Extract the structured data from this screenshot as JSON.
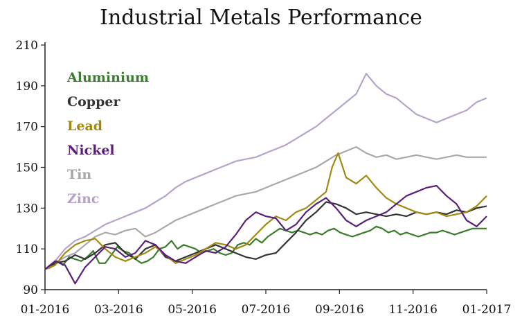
{
  "chart_data": {
    "type": "line",
    "title": "Industrial Metals Performance",
    "xlabel": "",
    "ylabel": "",
    "ylim": [
      90,
      210
    ],
    "yticks": [
      90,
      110,
      130,
      150,
      170,
      190,
      210
    ],
    "x_tick_labels": [
      "01-2016",
      "03-2016",
      "05-2016",
      "07-2016",
      "09-2016",
      "11-2016",
      "01-2017"
    ],
    "x_range_months": [
      0,
      12
    ],
    "legend_position": "top-left",
    "series": [
      {
        "name": "Aluminium",
        "color": "#3a7d2c",
        "points": [
          [
            0,
            100
          ],
          [
            0.3,
            101
          ],
          [
            0.6,
            104
          ],
          [
            0.9,
            102
          ],
          [
            1.2,
            106
          ],
          [
            1.5,
            105
          ],
          [
            1.8,
            104
          ],
          [
            2.1,
            106
          ],
          [
            2.4,
            109
          ],
          [
            2.7,
            103
          ],
          [
            3.0,
            103
          ],
          [
            3.3,
            107
          ],
          [
            3.6,
            111
          ],
          [
            3.9,
            109
          ],
          [
            4.2,
            108
          ],
          [
            4.5,
            105
          ],
          [
            4.8,
            103
          ],
          [
            5.1,
            104
          ],
          [
            5.4,
            106
          ],
          [
            5.7,
            110
          ],
          [
            6.0,
            111
          ],
          [
            6.3,
            114
          ],
          [
            6.6,
            110
          ],
          [
            6.9,
            112
          ],
          [
            7.2,
            111
          ],
          [
            7.5,
            110
          ],
          [
            7.8,
            108
          ],
          [
            8.1,
            109
          ],
          [
            8.4,
            110
          ],
          [
            8.7,
            108
          ],
          [
            9.0,
            107
          ],
          [
            9.3,
            108
          ],
          [
            9.6,
            112
          ],
          [
            9.9,
            113
          ],
          [
            10.2,
            112
          ],
          [
            10.5,
            115
          ],
          [
            10.8,
            113
          ],
          [
            11.1,
            116
          ],
          [
            11.4,
            118
          ],
          [
            11.7,
            120
          ],
          [
            12.0,
            119
          ],
          [
            12.3,
            118
          ],
          [
            12.6,
            119
          ],
          [
            12.9,
            118
          ],
          [
            13.2,
            117
          ],
          [
            13.5,
            118
          ],
          [
            13.8,
            117
          ],
          [
            14.1,
            119
          ],
          [
            14.4,
            120
          ],
          [
            14.7,
            118
          ],
          [
            15.0,
            117
          ],
          [
            15.3,
            116
          ],
          [
            15.6,
            117
          ],
          [
            15.9,
            118
          ],
          [
            16.2,
            119
          ],
          [
            16.5,
            121
          ],
          [
            16.8,
            120
          ],
          [
            17.1,
            118
          ],
          [
            17.4,
            119
          ],
          [
            17.7,
            117
          ],
          [
            18.0,
            118
          ],
          [
            18.3,
            117
          ],
          [
            18.6,
            116
          ],
          [
            18.9,
            117
          ],
          [
            19.2,
            118
          ],
          [
            19.5,
            118
          ],
          [
            19.8,
            119
          ],
          [
            20.1,
            118
          ],
          [
            20.4,
            117
          ],
          [
            20.7,
            118
          ],
          [
            21.0,
            119
          ],
          [
            21.3,
            120
          ],
          [
            21.6,
            120
          ],
          [
            22.0,
            120
          ]
        ]
      },
      {
        "name": "Copper",
        "color": "#333333",
        "points": [
          [
            0,
            100
          ],
          [
            0.5,
            103
          ],
          [
            1.0,
            104
          ],
          [
            1.5,
            107
          ],
          [
            2.0,
            105
          ],
          [
            2.5,
            108
          ],
          [
            3.0,
            112
          ],
          [
            3.5,
            113
          ],
          [
            4.0,
            108
          ],
          [
            4.5,
            105
          ],
          [
            5.0,
            110
          ],
          [
            5.5,
            112
          ],
          [
            6.0,
            106
          ],
          [
            6.5,
            104
          ],
          [
            7.0,
            106
          ],
          [
            7.5,
            108
          ],
          [
            8.0,
            110
          ],
          [
            8.5,
            112
          ],
          [
            9.0,
            110
          ],
          [
            9.5,
            108
          ],
          [
            10.0,
            106
          ],
          [
            10.5,
            105
          ],
          [
            11.0,
            107
          ],
          [
            11.5,
            108
          ],
          [
            12.0,
            113
          ],
          [
            12.5,
            118
          ],
          [
            13.0,
            124
          ],
          [
            13.5,
            128
          ],
          [
            14.0,
            133
          ],
          [
            14.5,
            132
          ],
          [
            15.0,
            130
          ],
          [
            15.5,
            127
          ],
          [
            16.0,
            128
          ],
          [
            16.5,
            127
          ],
          [
            17.0,
            126
          ],
          [
            17.5,
            127
          ],
          [
            18.0,
            126
          ],
          [
            18.5,
            128
          ],
          [
            19.0,
            127
          ],
          [
            19.5,
            128
          ],
          [
            20.0,
            127
          ],
          [
            20.5,
            129
          ],
          [
            21.0,
            128
          ],
          [
            21.5,
            130
          ],
          [
            22.0,
            131
          ]
        ]
      },
      {
        "name": "Lead",
        "color": "#a08a10",
        "points": [
          [
            0,
            100
          ],
          [
            0.5,
            102
          ],
          [
            1.0,
            108
          ],
          [
            1.5,
            112
          ],
          [
            2.0,
            114
          ],
          [
            2.5,
            115
          ],
          [
            3.0,
            110
          ],
          [
            3.5,
            106
          ],
          [
            4.0,
            104
          ],
          [
            4.5,
            106
          ],
          [
            5.0,
            108
          ],
          [
            5.5,
            111
          ],
          [
            6.0,
            107
          ],
          [
            6.5,
            103
          ],
          [
            7.0,
            105
          ],
          [
            7.5,
            107
          ],
          [
            8.0,
            110
          ],
          [
            8.5,
            113
          ],
          [
            9.0,
            112
          ],
          [
            9.5,
            110
          ],
          [
            10.0,
            112
          ],
          [
            10.5,
            117
          ],
          [
            11.0,
            122
          ],
          [
            11.5,
            126
          ],
          [
            12.0,
            124
          ],
          [
            12.5,
            128
          ],
          [
            13.0,
            130
          ],
          [
            13.5,
            134
          ],
          [
            14.0,
            138
          ],
          [
            14.3,
            150
          ],
          [
            14.6,
            157
          ],
          [
            15.0,
            145
          ],
          [
            15.5,
            142
          ],
          [
            16.0,
            146
          ],
          [
            16.5,
            140
          ],
          [
            17.0,
            135
          ],
          [
            17.5,
            132
          ],
          [
            18.0,
            130
          ],
          [
            18.5,
            128
          ],
          [
            19.0,
            127
          ],
          [
            19.5,
            128
          ],
          [
            20.0,
            126
          ],
          [
            20.5,
            127
          ],
          [
            21.0,
            128
          ],
          [
            21.5,
            131
          ],
          [
            22.0,
            136
          ]
        ]
      },
      {
        "name": "Nickel",
        "color": "#5a1f7a",
        "points": [
          [
            0,
            100
          ],
          [
            0.5,
            104
          ],
          [
            1.0,
            102
          ],
          [
            1.5,
            93
          ],
          [
            2.0,
            101
          ],
          [
            2.5,
            106
          ],
          [
            3.0,
            111
          ],
          [
            3.5,
            110
          ],
          [
            4.0,
            106
          ],
          [
            4.5,
            108
          ],
          [
            5.0,
            114
          ],
          [
            5.5,
            112
          ],
          [
            6.0,
            107
          ],
          [
            6.5,
            104
          ],
          [
            7.0,
            103
          ],
          [
            7.5,
            106
          ],
          [
            8.0,
            109
          ],
          [
            8.5,
            108
          ],
          [
            9.0,
            111
          ],
          [
            9.5,
            117
          ],
          [
            10.0,
            124
          ],
          [
            10.5,
            128
          ],
          [
            11.0,
            126
          ],
          [
            11.5,
            125
          ],
          [
            12.0,
            119
          ],
          [
            12.5,
            122
          ],
          [
            13.0,
            128
          ],
          [
            13.5,
            132
          ],
          [
            14.0,
            135
          ],
          [
            14.5,
            130
          ],
          [
            15.0,
            124
          ],
          [
            15.5,
            121
          ],
          [
            16.0,
            124
          ],
          [
            16.5,
            126
          ],
          [
            17.0,
            128
          ],
          [
            17.5,
            132
          ],
          [
            18.0,
            136
          ],
          [
            18.5,
            138
          ],
          [
            19.0,
            140
          ],
          [
            19.5,
            141
          ],
          [
            20.0,
            136
          ],
          [
            20.5,
            132
          ],
          [
            21.0,
            124
          ],
          [
            21.5,
            121
          ],
          [
            22.0,
            126
          ]
        ]
      },
      {
        "name": "Tin",
        "color": "#a8a8a8",
        "points": [
          [
            0,
            100
          ],
          [
            0.5,
            103
          ],
          [
            1.0,
            106
          ],
          [
            1.5,
            108
          ],
          [
            2.0,
            112
          ],
          [
            2.5,
            116
          ],
          [
            3.0,
            118
          ],
          [
            3.5,
            117
          ],
          [
            4.0,
            119
          ],
          [
            4.5,
            120
          ],
          [
            5.0,
            116
          ],
          [
            5.5,
            118
          ],
          [
            6.0,
            121
          ],
          [
            6.5,
            124
          ],
          [
            7.0,
            126
          ],
          [
            7.5,
            128
          ],
          [
            8.0,
            130
          ],
          [
            8.5,
            132
          ],
          [
            9.0,
            134
          ],
          [
            9.5,
            136
          ],
          [
            10.0,
            137
          ],
          [
            10.5,
            138
          ],
          [
            11.0,
            140
          ],
          [
            11.5,
            142
          ],
          [
            12.0,
            144
          ],
          [
            12.5,
            146
          ],
          [
            13.0,
            148
          ],
          [
            13.5,
            150
          ],
          [
            14.0,
            153
          ],
          [
            14.5,
            156
          ],
          [
            15.0,
            158
          ],
          [
            15.5,
            160
          ],
          [
            16.0,
            157
          ],
          [
            16.5,
            155
          ],
          [
            17.0,
            156
          ],
          [
            17.5,
            154
          ],
          [
            18.0,
            155
          ],
          [
            18.5,
            156
          ],
          [
            19.0,
            155
          ],
          [
            19.5,
            154
          ],
          [
            20.0,
            155
          ],
          [
            20.5,
            156
          ],
          [
            21.0,
            155
          ],
          [
            21.5,
            155
          ],
          [
            22.0,
            155
          ]
        ]
      },
      {
        "name": "Zinc",
        "color": "#b5a3c9",
        "points": [
          [
            0,
            100
          ],
          [
            0.5,
            104
          ],
          [
            1.0,
            110
          ],
          [
            1.5,
            114
          ],
          [
            2.0,
            116
          ],
          [
            2.5,
            119
          ],
          [
            3.0,
            122
          ],
          [
            3.5,
            124
          ],
          [
            4.0,
            126
          ],
          [
            4.5,
            128
          ],
          [
            5.0,
            130
          ],
          [
            5.5,
            133
          ],
          [
            6.0,
            136
          ],
          [
            6.5,
            140
          ],
          [
            7.0,
            143
          ],
          [
            7.5,
            145
          ],
          [
            8.0,
            147
          ],
          [
            8.5,
            149
          ],
          [
            9.0,
            151
          ],
          [
            9.5,
            153
          ],
          [
            10.0,
            154
          ],
          [
            10.5,
            155
          ],
          [
            11.0,
            157
          ],
          [
            11.5,
            159
          ],
          [
            12.0,
            161
          ],
          [
            12.5,
            164
          ],
          [
            13.0,
            167
          ],
          [
            13.5,
            170
          ],
          [
            14.0,
            174
          ],
          [
            14.5,
            178
          ],
          [
            15.0,
            182
          ],
          [
            15.5,
            186
          ],
          [
            16.0,
            196
          ],
          [
            16.5,
            190
          ],
          [
            17.0,
            186
          ],
          [
            17.5,
            184
          ],
          [
            18.0,
            180
          ],
          [
            18.5,
            176
          ],
          [
            19.0,
            174
          ],
          [
            19.5,
            172
          ],
          [
            20.0,
            174
          ],
          [
            20.5,
            176
          ],
          [
            21.0,
            178
          ],
          [
            21.5,
            182
          ],
          [
            22.0,
            184
          ]
        ]
      }
    ]
  }
}
